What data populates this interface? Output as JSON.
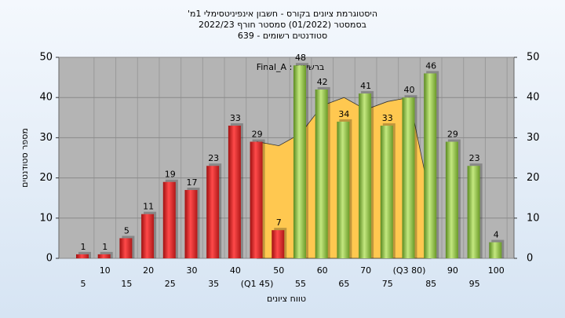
{
  "chart_data": {
    "type": "bar",
    "title": [
      "היסטוגרמת ציונים בקורס - חשבון אינפיניטסימלי 1מ'",
      "בסמסטר  (01/2022)  סמסטר חורף 2022/23",
      "סטודנטים רשומים - 639"
    ],
    "annotation": "ברשימה : Final_A",
    "xlabel": "טווח ציונים",
    "ylabel": "מספר סטודנטים",
    "categories": [
      "5",
      "10",
      "15",
      "20",
      "25",
      "30",
      "35",
      "40",
      "(Q1 45)",
      "50",
      "55",
      "60",
      "65",
      "70",
      "75",
      "(Q3 80)",
      "85",
      "90",
      "95",
      "100"
    ],
    "series": [
      {
        "color": "#e03030",
        "values": [
          1,
          1,
          5,
          11,
          19,
          17,
          23,
          33,
          29,
          7,
          null,
          null,
          null,
          null,
          null,
          null,
          null,
          null,
          null,
          null
        ]
      },
      {
        "color": "#8cc040",
        "values": [
          null,
          null,
          null,
          null,
          null,
          null,
          null,
          null,
          null,
          null,
          48,
          42,
          34,
          41,
          33,
          40,
          46,
          29,
          23,
          4
        ]
      },
      {
        "type": "area",
        "color": "#ffc850",
        "values": [
          null,
          null,
          null,
          null,
          null,
          null,
          null,
          null,
          29,
          28,
          31,
          38,
          40,
          37,
          39,
          40,
          14,
          null,
          null,
          null
        ]
      }
    ],
    "ylim": [
      0,
      50
    ],
    "yticks": [
      0,
      10,
      20,
      30,
      40,
      50
    ],
    "y2lim": [
      0,
      50
    ],
    "y2ticks": [
      0,
      10,
      20,
      30,
      40,
      50
    ],
    "grid": true
  }
}
